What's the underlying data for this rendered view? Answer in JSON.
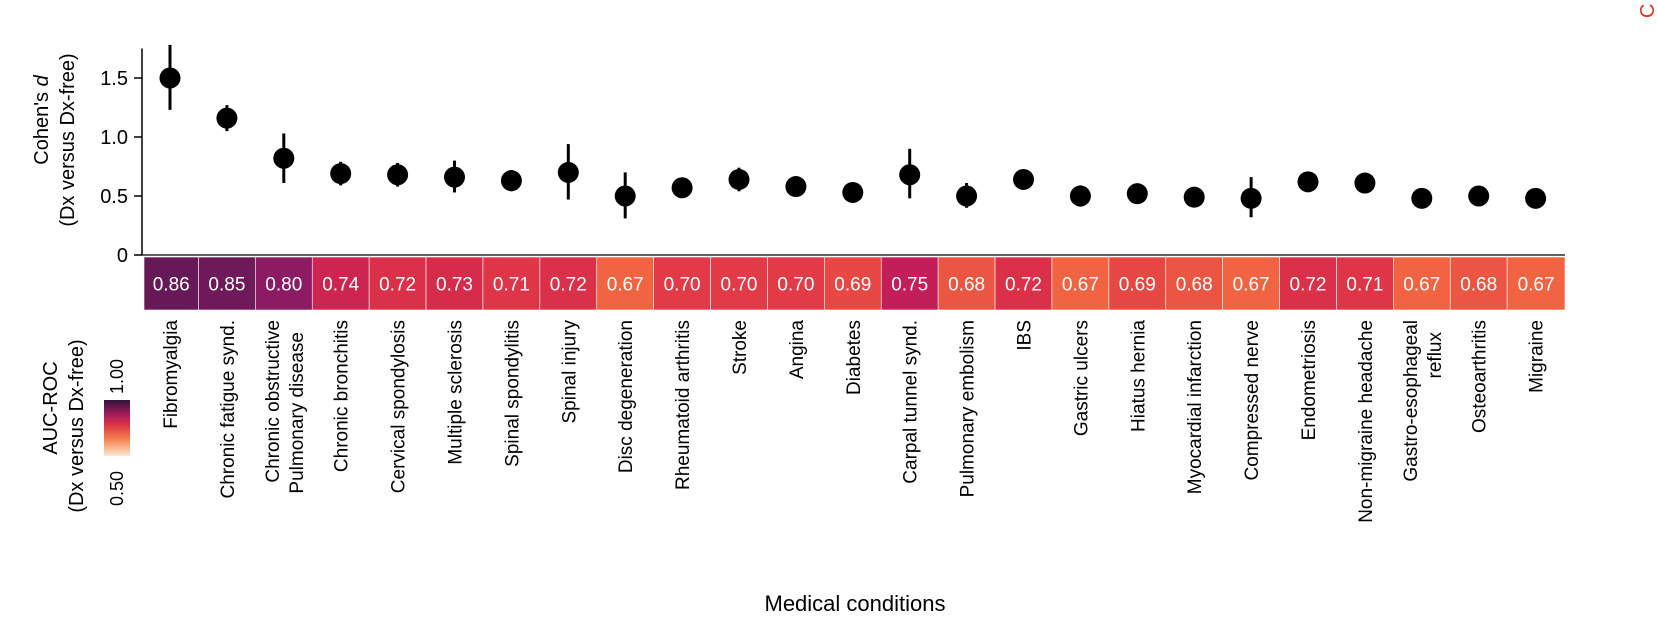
{
  "chart_data": {
    "type": "scatter",
    "xlabel": "Medical conditions",
    "ylabel_line1": "Cohen's d",
    "ylabel_line2": "(Dx versus Dx-free)",
    "ylim": [
      0,
      1.75
    ],
    "yticks": [
      0,
      0.5,
      1.0,
      1.5
    ],
    "ytick_labels": [
      "0",
      "0.5",
      "1.0",
      "1.5"
    ],
    "grid": false,
    "categories": [
      "Fibromyalgia",
      "Chronic fatigue synd.",
      "Chronic obstructive\nPulmonary disease",
      "Chronic bronchitis",
      "Cervical spondylosis",
      "Multiple sclerosis",
      "Spinal spondylitis",
      "Spinal injury",
      "Disc degeneration",
      "Rheumatoid arthritis",
      "Stroke",
      "Angina",
      "Diabetes",
      "Carpal tunnel synd.",
      "Pulmonary embolism",
      "IBS",
      "Gastric ulcers",
      "Hiatus hernia",
      "Myocardial infarction",
      "Compressed nerve",
      "Endometriosis",
      "Non-migraine headache",
      "Gastro-esophageal\nreflux",
      "Osteoarthritis",
      "Migraine"
    ],
    "cohens_d": [
      1.5,
      1.16,
      0.82,
      0.69,
      0.68,
      0.66,
      0.63,
      0.7,
      0.5,
      0.57,
      0.64,
      0.58,
      0.53,
      0.68,
      0.5,
      0.64,
      0.5,
      0.52,
      0.49,
      0.48,
      0.62,
      0.61,
      0.48,
      0.5,
      0.48
    ],
    "ci_low": [
      1.23,
      1.05,
      0.61,
      0.59,
      0.58,
      0.53,
      0.54,
      0.47,
      0.31,
      0.5,
      0.54,
      0.58,
      0.53,
      0.48,
      0.4,
      0.64,
      0.41,
      0.52,
      0.49,
      0.32,
      0.62,
      0.61,
      0.48,
      0.5,
      0.48
    ],
    "ci_high": [
      1.78,
      1.27,
      1.03,
      0.79,
      0.78,
      0.8,
      0.72,
      0.94,
      0.7,
      0.64,
      0.74,
      0.58,
      0.53,
      0.9,
      0.61,
      0.64,
      0.59,
      0.52,
      0.49,
      0.66,
      0.62,
      0.61,
      0.48,
      0.5,
      0.48
    ],
    "heatmap": {
      "row_label_line1": "AUC-ROC",
      "row_label_line2": "(Dx versus Dx-free)",
      "values": [
        0.86,
        0.85,
        0.8,
        0.74,
        0.72,
        0.73,
        0.71,
        0.72,
        0.67,
        0.7,
        0.7,
        0.7,
        0.69,
        0.75,
        0.68,
        0.72,
        0.67,
        0.69,
        0.68,
        0.67,
        0.72,
        0.71,
        0.67,
        0.68,
        0.67
      ],
      "labels": [
        "0.86",
        "0.85",
        "0.80",
        "0.74",
        "0.72",
        "0.73",
        "0.71",
        "0.72",
        "0.67",
        "0.70",
        "0.70",
        "0.70",
        "0.69",
        "0.75",
        "0.68",
        "0.72",
        "0.67",
        "0.69",
        "0.68",
        "0.67",
        "0.72",
        "0.71",
        "0.67",
        "0.68",
        "0.67"
      ],
      "colorbar": {
        "min": 0.5,
        "max": 1.0,
        "min_label": "0.50",
        "max_label": "1.00"
      }
    },
    "corner_mark": "C",
    "colors": {
      "marker": "#000000",
      "corner": "#e0301e"
    }
  }
}
